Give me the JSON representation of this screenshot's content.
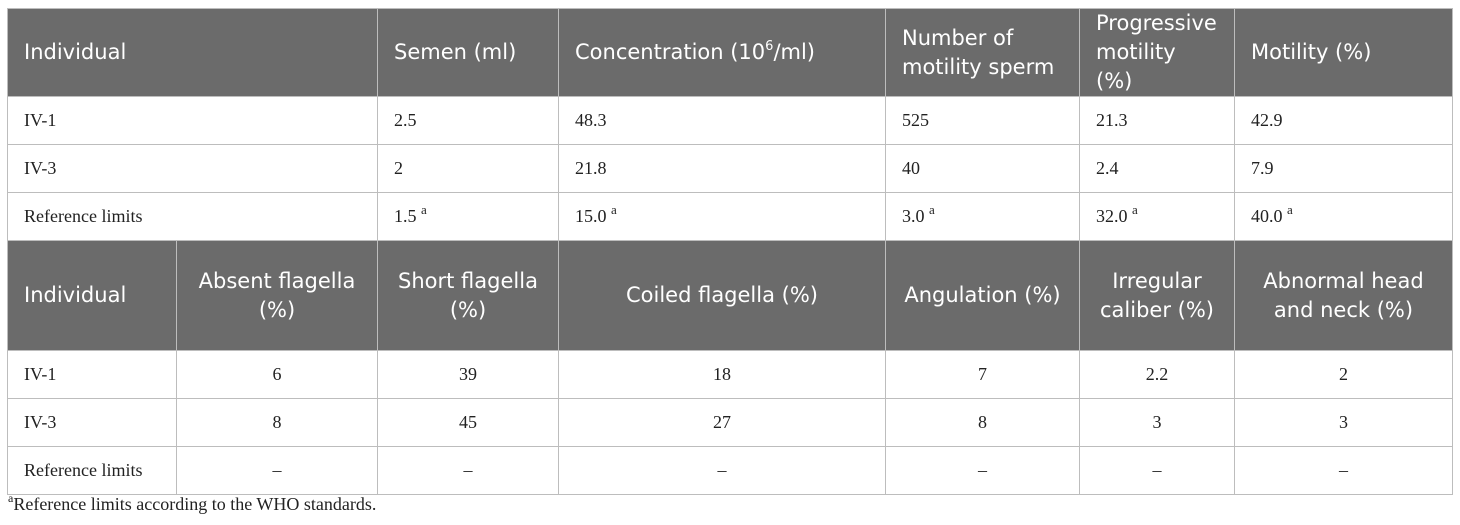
{
  "table1": {
    "headers": {
      "individual": "Individual",
      "semen": "Semen (ml)",
      "concentration_pre": "Concentration (10",
      "concentration_sup": "6",
      "concentration_post": "/ml)",
      "num_motility": "Number of motility sperm",
      "progressive": "Progressive motility (%)",
      "motility": "Motility (%)"
    },
    "rows": [
      {
        "individual": "IV-1",
        "semen": "2.5",
        "concentration": "48.3",
        "num_motility": "525",
        "progressive": "21.3",
        "motility": "42.9"
      },
      {
        "individual": "IV-3",
        "semen": "2",
        "concentration": "21.8",
        "num_motility": "40",
        "progressive": "2.4",
        "motility": "7.9"
      },
      {
        "individual": "Reference limits",
        "semen": "1.5",
        "concentration": "15.0",
        "num_motility": "3.0",
        "progressive": "32.0",
        "motility": "40.0",
        "marker": "a"
      }
    ]
  },
  "table2": {
    "headers": {
      "individual": "Individual",
      "absent": "Absent flagella (%)",
      "short": "Short flagella (%)",
      "coiled": "Coiled flagella (%)",
      "angulation": "Angulation (%)",
      "irregular": "Irregular caliber (%)",
      "abnormal": "Abnormal head and neck (%)"
    },
    "rows": [
      {
        "individual": "IV-1",
        "absent": "6",
        "short": "39",
        "coiled": "18",
        "angulation": "7",
        "irregular": "2.2",
        "abnormal": "2"
      },
      {
        "individual": "IV-3",
        "absent": "8",
        "short": "45",
        "coiled": "27",
        "angulation": "8",
        "irregular": "3",
        "abnormal": "3"
      },
      {
        "individual": "Reference limits",
        "absent": "–",
        "short": "–",
        "coiled": "–",
        "angulation": "–",
        "irregular": "–",
        "abnormal": "–"
      }
    ]
  },
  "footnote": {
    "marker": "a",
    "text": "Reference limits according to the WHO standards."
  },
  "colors": {
    "header_bg": "#6b6b6b",
    "header_text": "#ffffff",
    "border": "#bdbdbd"
  }
}
